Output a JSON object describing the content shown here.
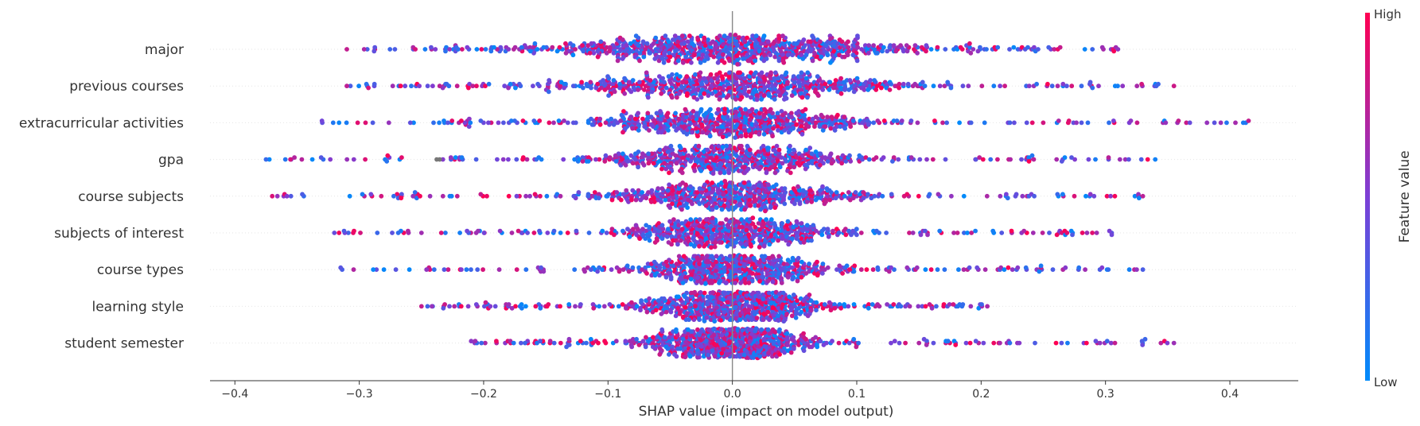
{
  "chart_data": {
    "type": "scatter",
    "subtype": "shap-beeswarm",
    "title": "",
    "xlabel": "SHAP value (impact on model output)",
    "ylabel": "",
    "xlim": [
      -0.42,
      0.455
    ],
    "xticks": [
      -0.4,
      -0.3,
      -0.2,
      -0.1,
      0.0,
      0.1,
      0.2,
      0.3,
      0.4
    ],
    "xtick_labels": [
      "−0.4",
      "−0.3",
      "−0.2",
      "−0.1",
      "0.0",
      "0.1",
      "0.2",
      "0.3",
      "0.4"
    ],
    "zero_line": 0.0,
    "grid": false,
    "features": [
      {
        "name": "major",
        "min": -0.31,
        "max": 0.31,
        "spread": 0.075,
        "density": 1.0
      },
      {
        "name": "previous courses",
        "min": -0.31,
        "max": 0.355,
        "spread": 0.065,
        "density": 0.85
      },
      {
        "name": "extracurricular activities",
        "min": -0.33,
        "max": 0.415,
        "spread": 0.055,
        "density": 0.8
      },
      {
        "name": "gpa",
        "min": -0.375,
        "max": 0.34,
        "spread": 0.05,
        "density": 0.75
      },
      {
        "name": "course subjects",
        "min": -0.37,
        "max": 0.33,
        "spread": 0.05,
        "density": 0.75
      },
      {
        "name": "subjects of interest",
        "min": -0.32,
        "max": 0.305,
        "spread": 0.045,
        "density": 0.75
      },
      {
        "name": "course types",
        "min": -0.315,
        "max": 0.33,
        "spread": 0.04,
        "density": 0.8
      },
      {
        "name": "learning style",
        "min": -0.25,
        "max": 0.205,
        "spread": 0.035,
        "density": 0.9
      },
      {
        "name": "student semester",
        "min": -0.21,
        "max": 0.355,
        "spread": 0.03,
        "density": 1.0
      }
    ],
    "colorbar": {
      "label": "Feature value",
      "high_label": "High",
      "low_label": "Low",
      "high_color": "#ff0052",
      "mid_color": "#7c3fd6",
      "low_color": "#008bfb"
    },
    "missing_value_color": "#777777"
  }
}
